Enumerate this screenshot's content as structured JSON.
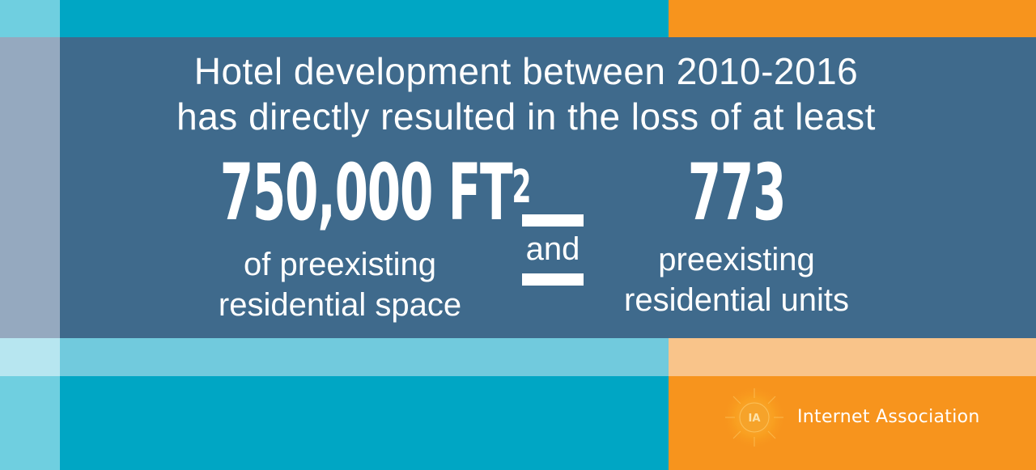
{
  "headline": {
    "line1": "Hotel development between 2010-2016",
    "line2": "has directly resulted in the loss of at least"
  },
  "stats": {
    "left_value": "750,000 FT",
    "left_superscript": "2",
    "left_caption_line1": "of preexisting",
    "left_caption_line2": "residential space",
    "conjunction": "and",
    "right_value": "773",
    "right_caption_line1": "preexisting",
    "right_caption_line2": "residential units"
  },
  "logo": {
    "mark": "IA",
    "name": "Internet Association"
  },
  "colors": {
    "teal": "#00a6c4",
    "orange": "#f7941d",
    "slate_blue": "#3f6a8c",
    "light_teal": "#71cadd",
    "light_orange": "#f9c48a",
    "text": "#ffffff"
  }
}
